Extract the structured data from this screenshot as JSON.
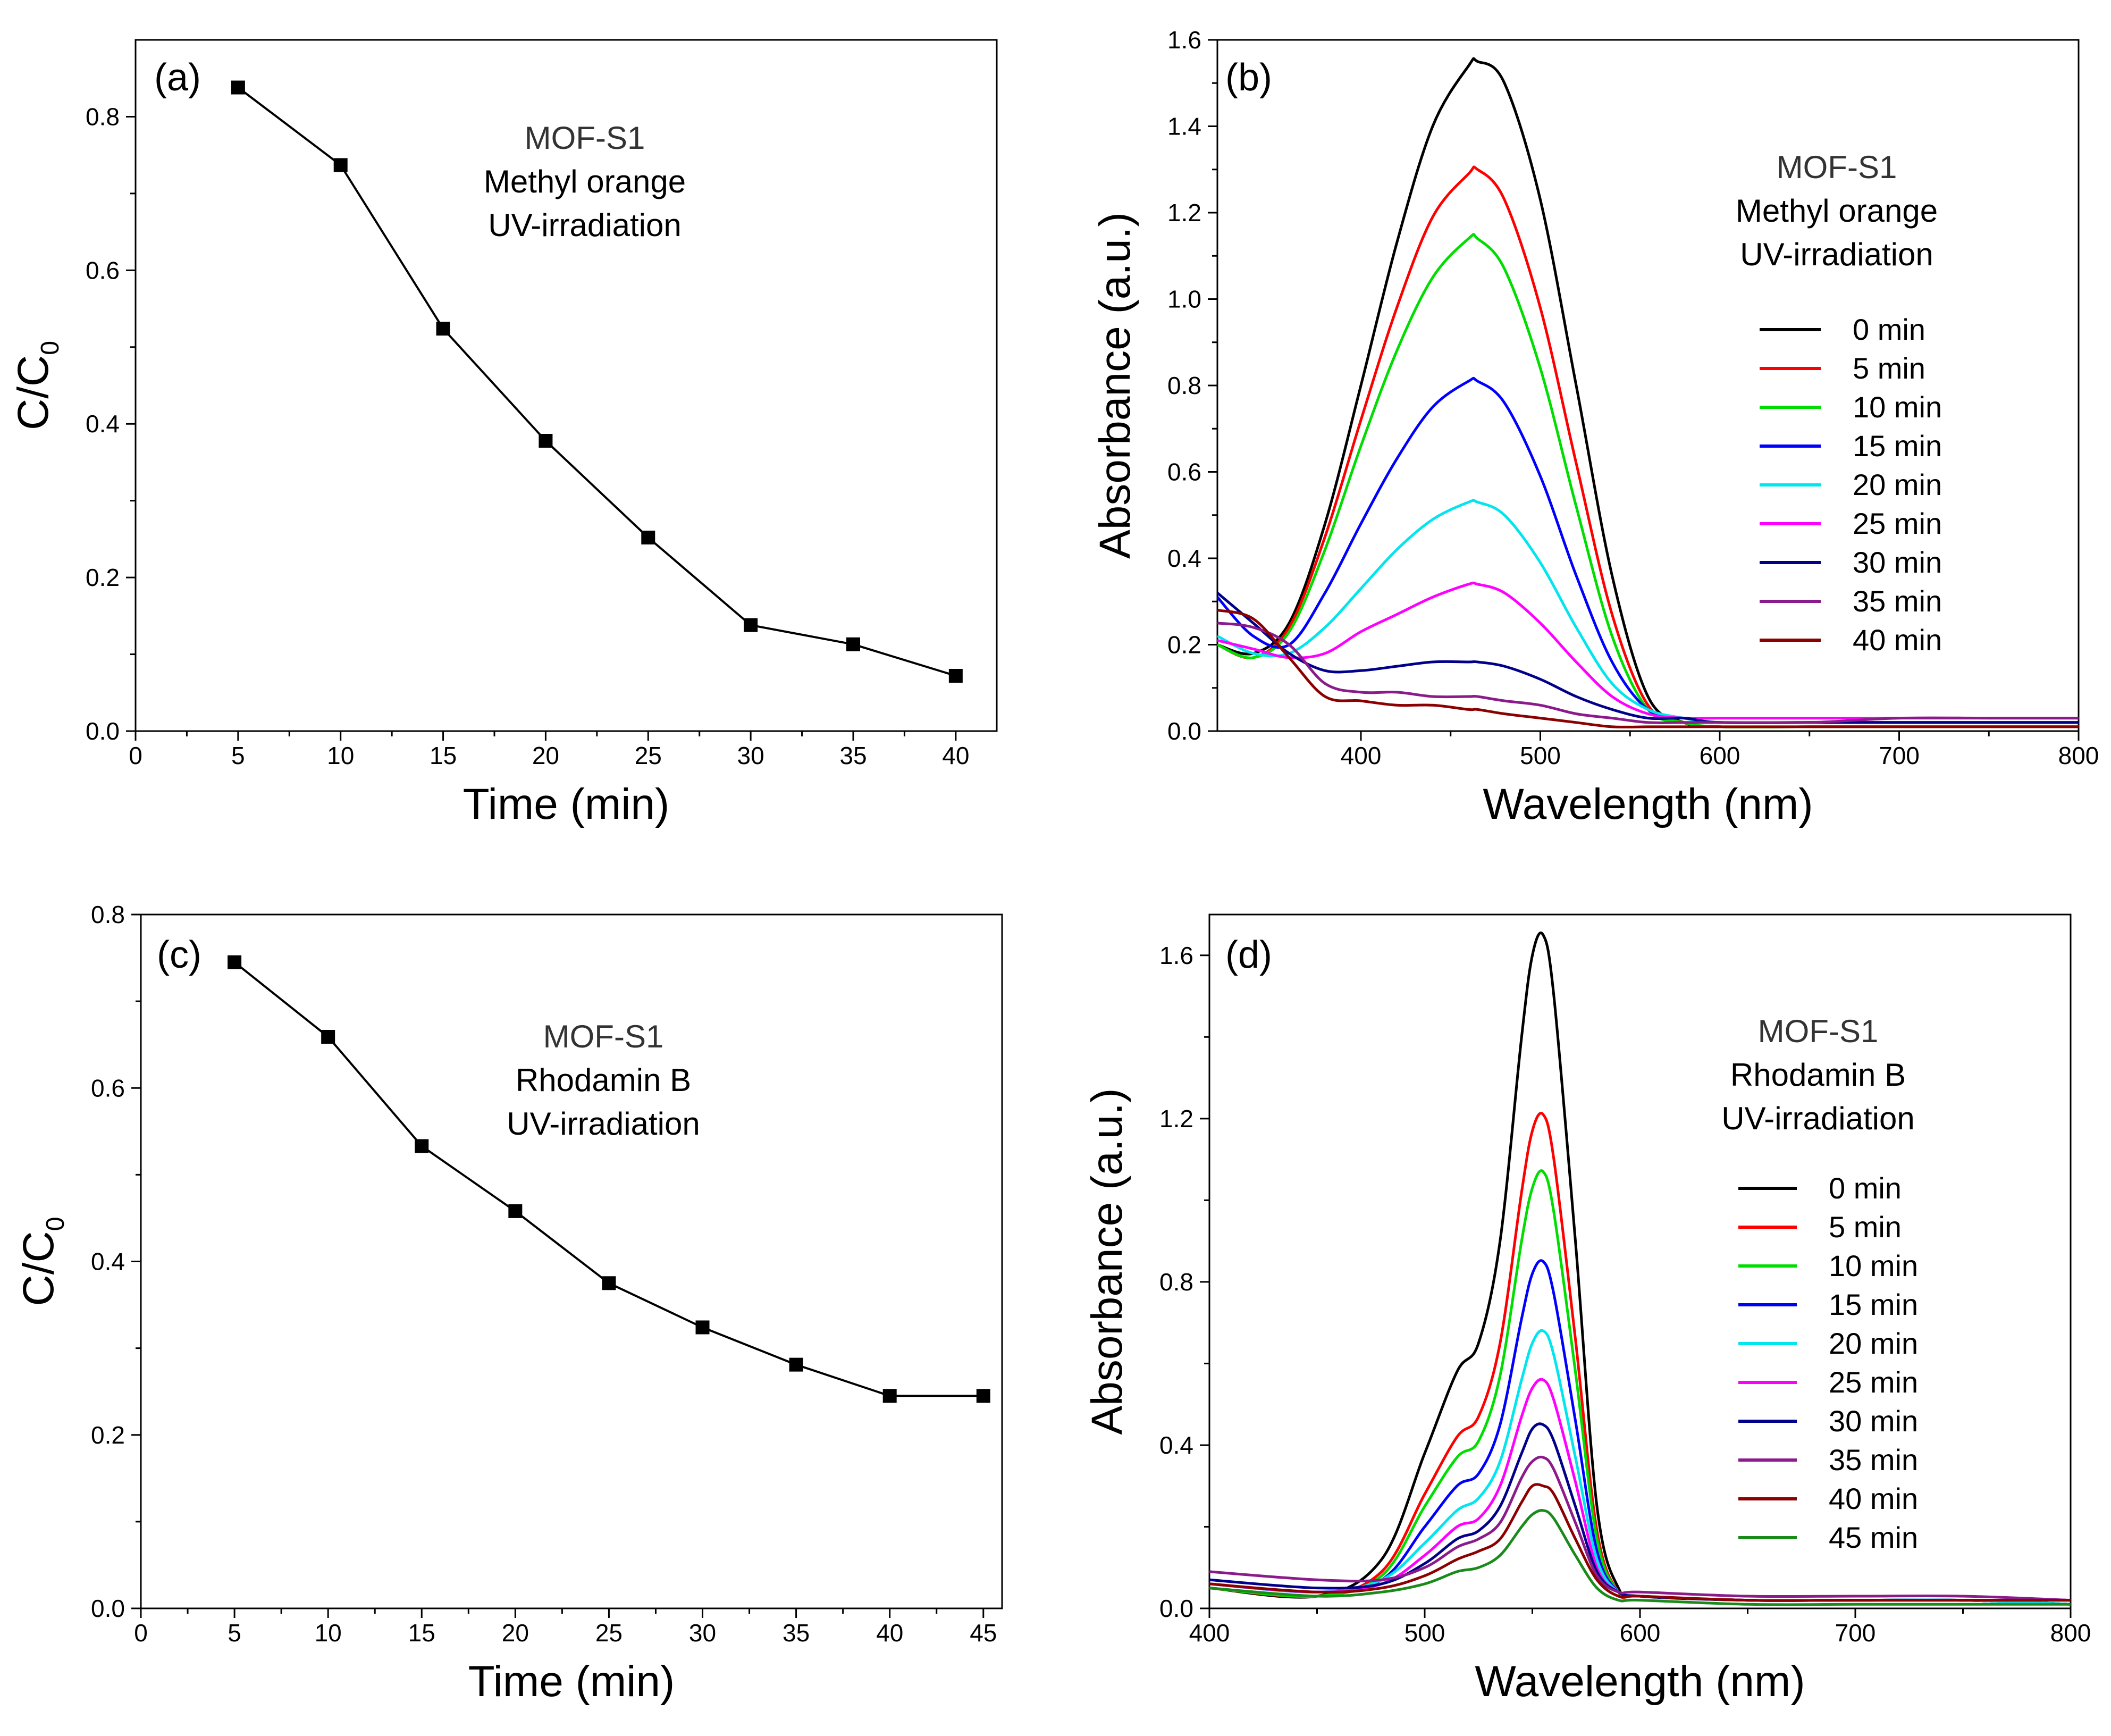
{
  "chart_data": [
    {
      "panel": "(a)",
      "type": "line",
      "xlabel": "Time (min)",
      "ylabel": "C/C",
      "ylabel_sub": "0",
      "xlim": [
        0,
        42
      ],
      "ylim": [
        0,
        0.9
      ],
      "xticks": [
        0,
        5,
        10,
        15,
        20,
        25,
        30,
        35,
        40
      ],
      "yticks": [
        0.0,
        0.2,
        0.4,
        0.6,
        0.8
      ],
      "ytick_labels": [
        "0.0",
        "0.2",
        "0.4",
        "0.6",
        "0.8"
      ],
      "annotation": [
        "MOF-S1",
        "Methyl orange",
        "UV-irradiation"
      ],
      "series": [
        {
          "name": "C/C0",
          "color": "#000000",
          "marker": "square",
          "x": [
            5,
            10,
            15,
            20,
            25,
            30,
            35,
            40
          ],
          "y": [
            0.838,
            0.737,
            0.524,
            0.378,
            0.252,
            0.138,
            0.113,
            0.072
          ]
        }
      ]
    },
    {
      "panel": "(b)",
      "type": "line",
      "xlabel": "Wavelength (nm)",
      "ylabel": "Absorbance (a.u.)",
      "xlim": [
        320,
        800
      ],
      "ylim": [
        0,
        1.6
      ],
      "xticks": [
        400,
        500,
        600,
        700,
        800
      ],
      "yticks": [
        0.0,
        0.2,
        0.4,
        0.6,
        0.8,
        1.0,
        1.2,
        1.4,
        1.6
      ],
      "ytick_labels": [
        "0.0",
        "0.2",
        "0.4",
        "0.6",
        "0.8",
        "1.0",
        "1.2",
        "1.4",
        "1.6"
      ],
      "annotation": [
        "MOF-S1",
        "Methyl orange",
        "UV-irradiation"
      ],
      "legend": "right",
      "series": [
        {
          "name": "0 min",
          "color": "#000000",
          "x": [
            320,
            340,
            360,
            380,
            400,
            420,
            440,
            460,
            465,
            480,
            500,
            520,
            540,
            560,
            580,
            600,
            650,
            700,
            750,
            800
          ],
          "y": [
            0.2,
            0.18,
            0.25,
            0.48,
            0.8,
            1.13,
            1.4,
            1.54,
            1.55,
            1.5,
            1.23,
            0.8,
            0.36,
            0.08,
            0.02,
            0.01,
            0.01,
            0.01,
            0.01,
            0.01
          ]
        },
        {
          "name": "5 min",
          "color": "#ff0000",
          "x": [
            320,
            340,
            360,
            380,
            400,
            420,
            440,
            460,
            465,
            480,
            500,
            520,
            540,
            560,
            580,
            600,
            650,
            700,
            750,
            800
          ],
          "y": [
            0.2,
            0.17,
            0.24,
            0.45,
            0.72,
            0.98,
            1.19,
            1.29,
            1.3,
            1.23,
            0.98,
            0.62,
            0.27,
            0.06,
            0.02,
            0.01,
            0.01,
            0.01,
            0.01,
            0.01
          ]
        },
        {
          "name": "10 min",
          "color": "#00dd00",
          "x": [
            320,
            340,
            360,
            380,
            400,
            420,
            440,
            460,
            465,
            480,
            500,
            520,
            540,
            560,
            580,
            600,
            650,
            700,
            750,
            800
          ],
          "y": [
            0.2,
            0.17,
            0.23,
            0.42,
            0.66,
            0.88,
            1.05,
            1.14,
            1.14,
            1.07,
            0.84,
            0.52,
            0.22,
            0.05,
            0.02,
            0.01,
            0.01,
            0.01,
            0.01,
            0.01
          ]
        },
        {
          "name": "15 min",
          "color": "#0000ff",
          "x": [
            320,
            340,
            360,
            380,
            400,
            420,
            440,
            460,
            465,
            480,
            500,
            520,
            540,
            560,
            580,
            600,
            650,
            700,
            750,
            800
          ],
          "y": [
            0.31,
            0.22,
            0.2,
            0.32,
            0.48,
            0.63,
            0.75,
            0.81,
            0.81,
            0.76,
            0.59,
            0.36,
            0.16,
            0.05,
            0.03,
            0.02,
            0.02,
            0.02,
            0.02,
            0.02
          ]
        },
        {
          "name": "20 min",
          "color": "#00e5ee",
          "x": [
            320,
            340,
            360,
            380,
            400,
            420,
            440,
            460,
            465,
            480,
            500,
            520,
            540,
            560,
            580,
            600,
            650,
            700,
            750,
            800
          ],
          "y": [
            0.22,
            0.18,
            0.18,
            0.24,
            0.33,
            0.42,
            0.49,
            0.53,
            0.53,
            0.5,
            0.39,
            0.24,
            0.11,
            0.05,
            0.03,
            0.02,
            0.02,
            0.02,
            0.02,
            0.02
          ]
        },
        {
          "name": "25 min",
          "color": "#ff00ff",
          "x": [
            320,
            340,
            360,
            380,
            400,
            420,
            440,
            460,
            465,
            480,
            500,
            520,
            540,
            560,
            580,
            600,
            650,
            700,
            750,
            800
          ],
          "y": [
            0.21,
            0.19,
            0.17,
            0.18,
            0.23,
            0.27,
            0.31,
            0.34,
            0.34,
            0.32,
            0.25,
            0.16,
            0.08,
            0.04,
            0.03,
            0.03,
            0.03,
            0.03,
            0.03,
            0.03
          ]
        },
        {
          "name": "30 min",
          "color": "#00008b",
          "x": [
            320,
            340,
            360,
            380,
            400,
            420,
            440,
            460,
            465,
            480,
            500,
            520,
            540,
            560,
            580,
            600,
            650,
            700,
            750,
            800
          ],
          "y": [
            0.32,
            0.25,
            0.18,
            0.14,
            0.14,
            0.15,
            0.16,
            0.16,
            0.16,
            0.15,
            0.12,
            0.08,
            0.05,
            0.03,
            0.03,
            0.02,
            0.02,
            0.02,
            0.02,
            0.02
          ]
        },
        {
          "name": "35 min",
          "color": "#8b1a8b",
          "x": [
            320,
            340,
            360,
            380,
            400,
            420,
            440,
            460,
            465,
            480,
            500,
            520,
            540,
            560,
            580,
            600,
            650,
            700,
            750,
            800
          ],
          "y": [
            0.25,
            0.24,
            0.2,
            0.11,
            0.09,
            0.09,
            0.08,
            0.08,
            0.08,
            0.07,
            0.06,
            0.04,
            0.03,
            0.02,
            0.02,
            0.02,
            0.02,
            0.03,
            0.03,
            0.03
          ]
        },
        {
          "name": "40 min",
          "color": "#8b0000",
          "x": [
            320,
            340,
            360,
            380,
            400,
            420,
            440,
            460,
            465,
            480,
            500,
            520,
            540,
            560,
            580,
            600,
            650,
            700,
            750,
            800
          ],
          "y": [
            0.28,
            0.26,
            0.17,
            0.08,
            0.07,
            0.06,
            0.06,
            0.05,
            0.05,
            0.04,
            0.03,
            0.02,
            0.01,
            0.01,
            0.01,
            0.01,
            0.01,
            0.01,
            0.01,
            0.01
          ]
        }
      ]
    },
    {
      "panel": "(c)",
      "type": "line",
      "xlabel": "Time (min)",
      "ylabel": "C/C",
      "ylabel_sub": "0",
      "xlim": [
        0,
        46
      ],
      "ylim": [
        0,
        0.8
      ],
      "xticks": [
        0,
        5,
        10,
        15,
        20,
        25,
        30,
        35,
        40,
        45
      ],
      "yticks": [
        0.0,
        0.2,
        0.4,
        0.6,
        0.8
      ],
      "ytick_labels": [
        "0.0",
        "0.2",
        "0.4",
        "0.6",
        "0.8"
      ],
      "annotation": [
        "MOF-S1",
        "Rhodamin B",
        "UV-irradiation"
      ],
      "series": [
        {
          "name": "C/C0",
          "color": "#000000",
          "marker": "square",
          "x": [
            5,
            10,
            15,
            20,
            25,
            30,
            35,
            40,
            45
          ],
          "y": [
            0.745,
            0.659,
            0.533,
            0.458,
            0.375,
            0.324,
            0.281,
            0.245,
            0.245
          ]
        }
      ]
    },
    {
      "panel": "(d)",
      "type": "line",
      "xlabel": "Wavelength (nm)",
      "ylabel": "Absorbance (a.u.)",
      "xlim": [
        400,
        800
      ],
      "ylim": [
        0,
        1.7
      ],
      "xticks": [
        400,
        500,
        600,
        700,
        800
      ],
      "yticks": [
        0.0,
        0.4,
        0.8,
        1.2,
        1.6
      ],
      "ytick_labels": [
        "0.0",
        "0.4",
        "0.8",
        "1.2",
        "1.6"
      ],
      "annotation": [
        "MOF-S1",
        "Rhodamin B",
        "UV-irradiation"
      ],
      "legend": "right",
      "series": [
        {
          "name": "0 min",
          "color": "#000000",
          "x": [
            400,
            450,
            480,
            500,
            515,
            525,
            535,
            545,
            550,
            555,
            560,
            570,
            580,
            590,
            600,
            650,
            700,
            750,
            800
          ],
          "y": [
            0.05,
            0.03,
            0.12,
            0.38,
            0.58,
            0.65,
            0.9,
            1.4,
            1.6,
            1.65,
            1.5,
            0.9,
            0.25,
            0.05,
            0.03,
            0.02,
            0.02,
            0.02,
            0.01
          ]
        },
        {
          "name": "5 min",
          "color": "#ff0000",
          "x": [
            400,
            450,
            480,
            500,
            515,
            525,
            535,
            545,
            550,
            555,
            560,
            570,
            580,
            590,
            600,
            650,
            700,
            750,
            800
          ],
          "y": [
            0.05,
            0.03,
            0.09,
            0.28,
            0.42,
            0.47,
            0.65,
            1.02,
            1.17,
            1.21,
            1.1,
            0.66,
            0.19,
            0.04,
            0.03,
            0.02,
            0.02,
            0.02,
            0.01
          ]
        },
        {
          "name": "10 min",
          "color": "#00dd00",
          "x": [
            400,
            450,
            480,
            500,
            515,
            525,
            535,
            545,
            550,
            555,
            560,
            570,
            580,
            590,
            600,
            650,
            700,
            750,
            800
          ],
          "y": [
            0.05,
            0.03,
            0.08,
            0.25,
            0.37,
            0.41,
            0.57,
            0.9,
            1.03,
            1.07,
            0.97,
            0.58,
            0.17,
            0.04,
            0.03,
            0.02,
            0.02,
            0.02,
            0.01
          ]
        },
        {
          "name": "15 min",
          "color": "#0000ff",
          "x": [
            400,
            450,
            480,
            500,
            515,
            525,
            535,
            545,
            550,
            555,
            560,
            570,
            580,
            590,
            600,
            650,
            700,
            750,
            800
          ],
          "y": [
            0.06,
            0.04,
            0.07,
            0.2,
            0.3,
            0.33,
            0.45,
            0.71,
            0.82,
            0.85,
            0.77,
            0.46,
            0.14,
            0.04,
            0.03,
            0.02,
            0.02,
            0.02,
            0.01
          ]
        },
        {
          "name": "20 min",
          "color": "#00e5ee",
          "x": [
            400,
            450,
            480,
            500,
            515,
            525,
            535,
            545,
            550,
            555,
            560,
            570,
            580,
            590,
            600,
            650,
            700,
            750,
            800
          ],
          "y": [
            0.06,
            0.04,
            0.07,
            0.16,
            0.24,
            0.27,
            0.36,
            0.56,
            0.65,
            0.68,
            0.62,
            0.37,
            0.12,
            0.04,
            0.03,
            0.02,
            0.02,
            0.02,
            0.01
          ]
        },
        {
          "name": "25 min",
          "color": "#ff00ff",
          "x": [
            400,
            450,
            480,
            500,
            515,
            525,
            535,
            545,
            550,
            555,
            560,
            570,
            580,
            590,
            600,
            650,
            700,
            750,
            800
          ],
          "y": [
            0.06,
            0.04,
            0.06,
            0.13,
            0.2,
            0.22,
            0.3,
            0.47,
            0.54,
            0.56,
            0.51,
            0.31,
            0.1,
            0.04,
            0.03,
            0.02,
            0.02,
            0.02,
            0.02
          ]
        },
        {
          "name": "30 min",
          "color": "#00008b",
          "x": [
            400,
            450,
            480,
            500,
            515,
            525,
            535,
            545,
            550,
            555,
            560,
            570,
            580,
            590,
            600,
            650,
            700,
            750,
            800
          ],
          "y": [
            0.07,
            0.05,
            0.06,
            0.11,
            0.17,
            0.19,
            0.25,
            0.38,
            0.44,
            0.45,
            0.41,
            0.25,
            0.09,
            0.04,
            0.03,
            0.02,
            0.02,
            0.02,
            0.02
          ]
        },
        {
          "name": "35 min",
          "color": "#8b1a8b",
          "x": [
            400,
            450,
            480,
            500,
            515,
            525,
            535,
            545,
            550,
            555,
            560,
            570,
            580,
            590,
            600,
            650,
            700,
            750,
            800
          ],
          "y": [
            0.09,
            0.07,
            0.07,
            0.1,
            0.15,
            0.17,
            0.21,
            0.32,
            0.36,
            0.37,
            0.34,
            0.21,
            0.08,
            0.04,
            0.04,
            0.03,
            0.03,
            0.03,
            0.02
          ]
        },
        {
          "name": "40 min",
          "color": "#8b0000",
          "x": [
            400,
            450,
            480,
            500,
            515,
            525,
            535,
            545,
            550,
            555,
            560,
            570,
            580,
            590,
            600,
            650,
            700,
            750,
            800
          ],
          "y": [
            0.06,
            0.04,
            0.05,
            0.08,
            0.12,
            0.14,
            0.17,
            0.26,
            0.3,
            0.3,
            0.28,
            0.17,
            0.07,
            0.03,
            0.03,
            0.02,
            0.02,
            0.02,
            0.02
          ]
        },
        {
          "name": "45 min",
          "color": "#1a8b1a",
          "x": [
            400,
            450,
            480,
            500,
            515,
            525,
            535,
            545,
            550,
            555,
            560,
            570,
            580,
            590,
            600,
            650,
            700,
            750,
            800
          ],
          "y": [
            0.05,
            0.03,
            0.04,
            0.06,
            0.09,
            0.1,
            0.13,
            0.2,
            0.23,
            0.24,
            0.22,
            0.13,
            0.05,
            0.02,
            0.02,
            0.01,
            0.01,
            0.01,
            0.01
          ]
        }
      ]
    }
  ]
}
